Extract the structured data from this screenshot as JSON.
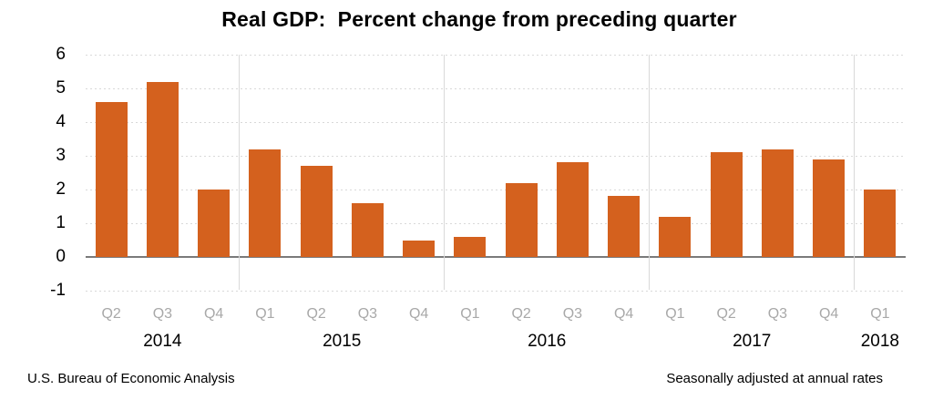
{
  "title": "Real GDP:  Percent change from preceding quarter",
  "footer": {
    "left": "U.S. Bureau of Economic Analysis",
    "right": "Seasonally adjusted at annual rates"
  },
  "colors": {
    "bar": "#D4611E",
    "gridline": "#D9D9D9",
    "separator": "#D9D9D9",
    "zero_line": "#7A7A7A",
    "quarter_label": "#A8A8A8",
    "text": "#000000"
  },
  "chart_data": {
    "type": "bar",
    "title": "Real GDP:  Percent change from preceding quarter",
    "xlabel": "",
    "ylabel": "",
    "ylim": [
      -1,
      6
    ],
    "yticks": [
      6,
      5,
      4,
      3,
      2,
      1,
      0,
      -1
    ],
    "grid": true,
    "legend": false,
    "categories": [
      "2014 Q2",
      "2014 Q3",
      "2014 Q4",
      "2015 Q1",
      "2015 Q2",
      "2015 Q3",
      "2015 Q4",
      "2016 Q1",
      "2016 Q2",
      "2016 Q3",
      "2016 Q4",
      "2017 Q1",
      "2017 Q2",
      "2017 Q3",
      "2017 Q4",
      "2018 Q1"
    ],
    "values": [
      4.6,
      5.2,
      2.0,
      3.2,
      2.7,
      1.6,
      0.5,
      0.6,
      2.2,
      2.8,
      1.8,
      1.2,
      3.1,
      3.2,
      2.9,
      2.0
    ],
    "groups": [
      {
        "year": "2014",
        "quarters": [
          "Q2",
          "Q3",
          "Q4"
        ],
        "values": [
          4.6,
          5.2,
          2.0
        ]
      },
      {
        "year": "2015",
        "quarters": [
          "Q1",
          "Q2",
          "Q3",
          "Q4"
        ],
        "values": [
          3.2,
          2.7,
          1.6,
          0.5
        ]
      },
      {
        "year": "2016",
        "quarters": [
          "Q1",
          "Q2",
          "Q3",
          "Q4"
        ],
        "values": [
          0.6,
          2.2,
          2.8,
          1.8
        ]
      },
      {
        "year": "2017",
        "quarters": [
          "Q1",
          "Q2",
          "Q3",
          "Q4"
        ],
        "values": [
          1.2,
          3.1,
          3.2,
          2.9
        ]
      },
      {
        "year": "2018",
        "quarters": [
          "Q1"
        ],
        "values": [
          2.0
        ]
      }
    ]
  }
}
